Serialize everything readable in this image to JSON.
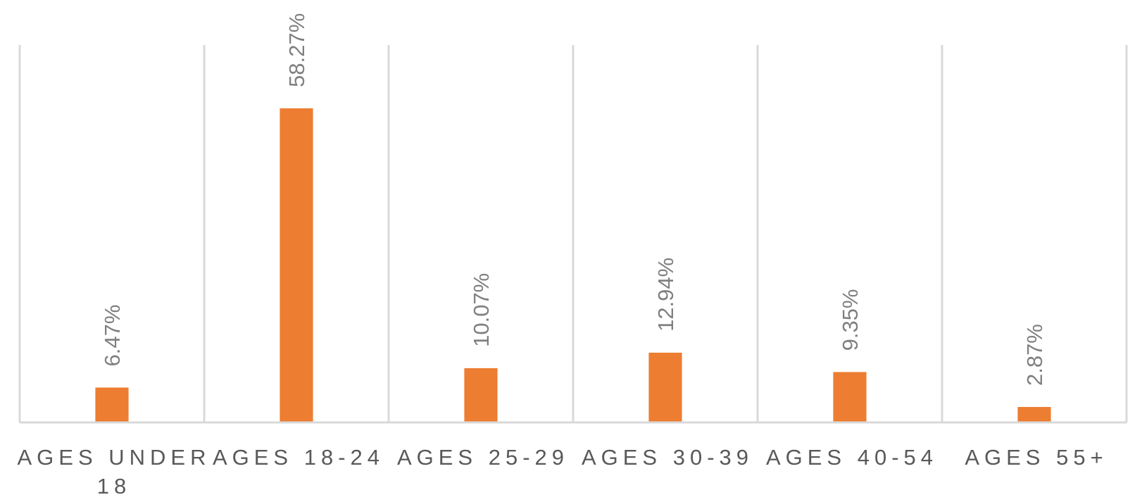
{
  "chart_data": {
    "type": "bar",
    "categories": [
      [
        "AGES UNDER",
        "18"
      ],
      [
        "AGES 18-24"
      ],
      [
        "AGES 25-29"
      ],
      [
        "AGES 30-39"
      ],
      [
        "AGES 40-54"
      ],
      [
        "AGES 55+"
      ]
    ],
    "values": [
      6.47,
      58.27,
      10.07,
      12.94,
      9.35,
      2.87
    ],
    "data_labels": [
      "6.47%",
      "58.27%",
      "10.07%",
      "12.94%",
      "9.35%",
      "2.87%"
    ],
    "unit": "%",
    "ylim": [
      0,
      70
    ],
    "title": "",
    "xlabel": "",
    "ylabel": "",
    "grid": "vertical category separators",
    "legend": "none",
    "colors": {
      "bar": "#ed7d31",
      "gridline": "#d9d9d9",
      "data_label": "#7f7f7f",
      "category_label": "#595959"
    }
  }
}
